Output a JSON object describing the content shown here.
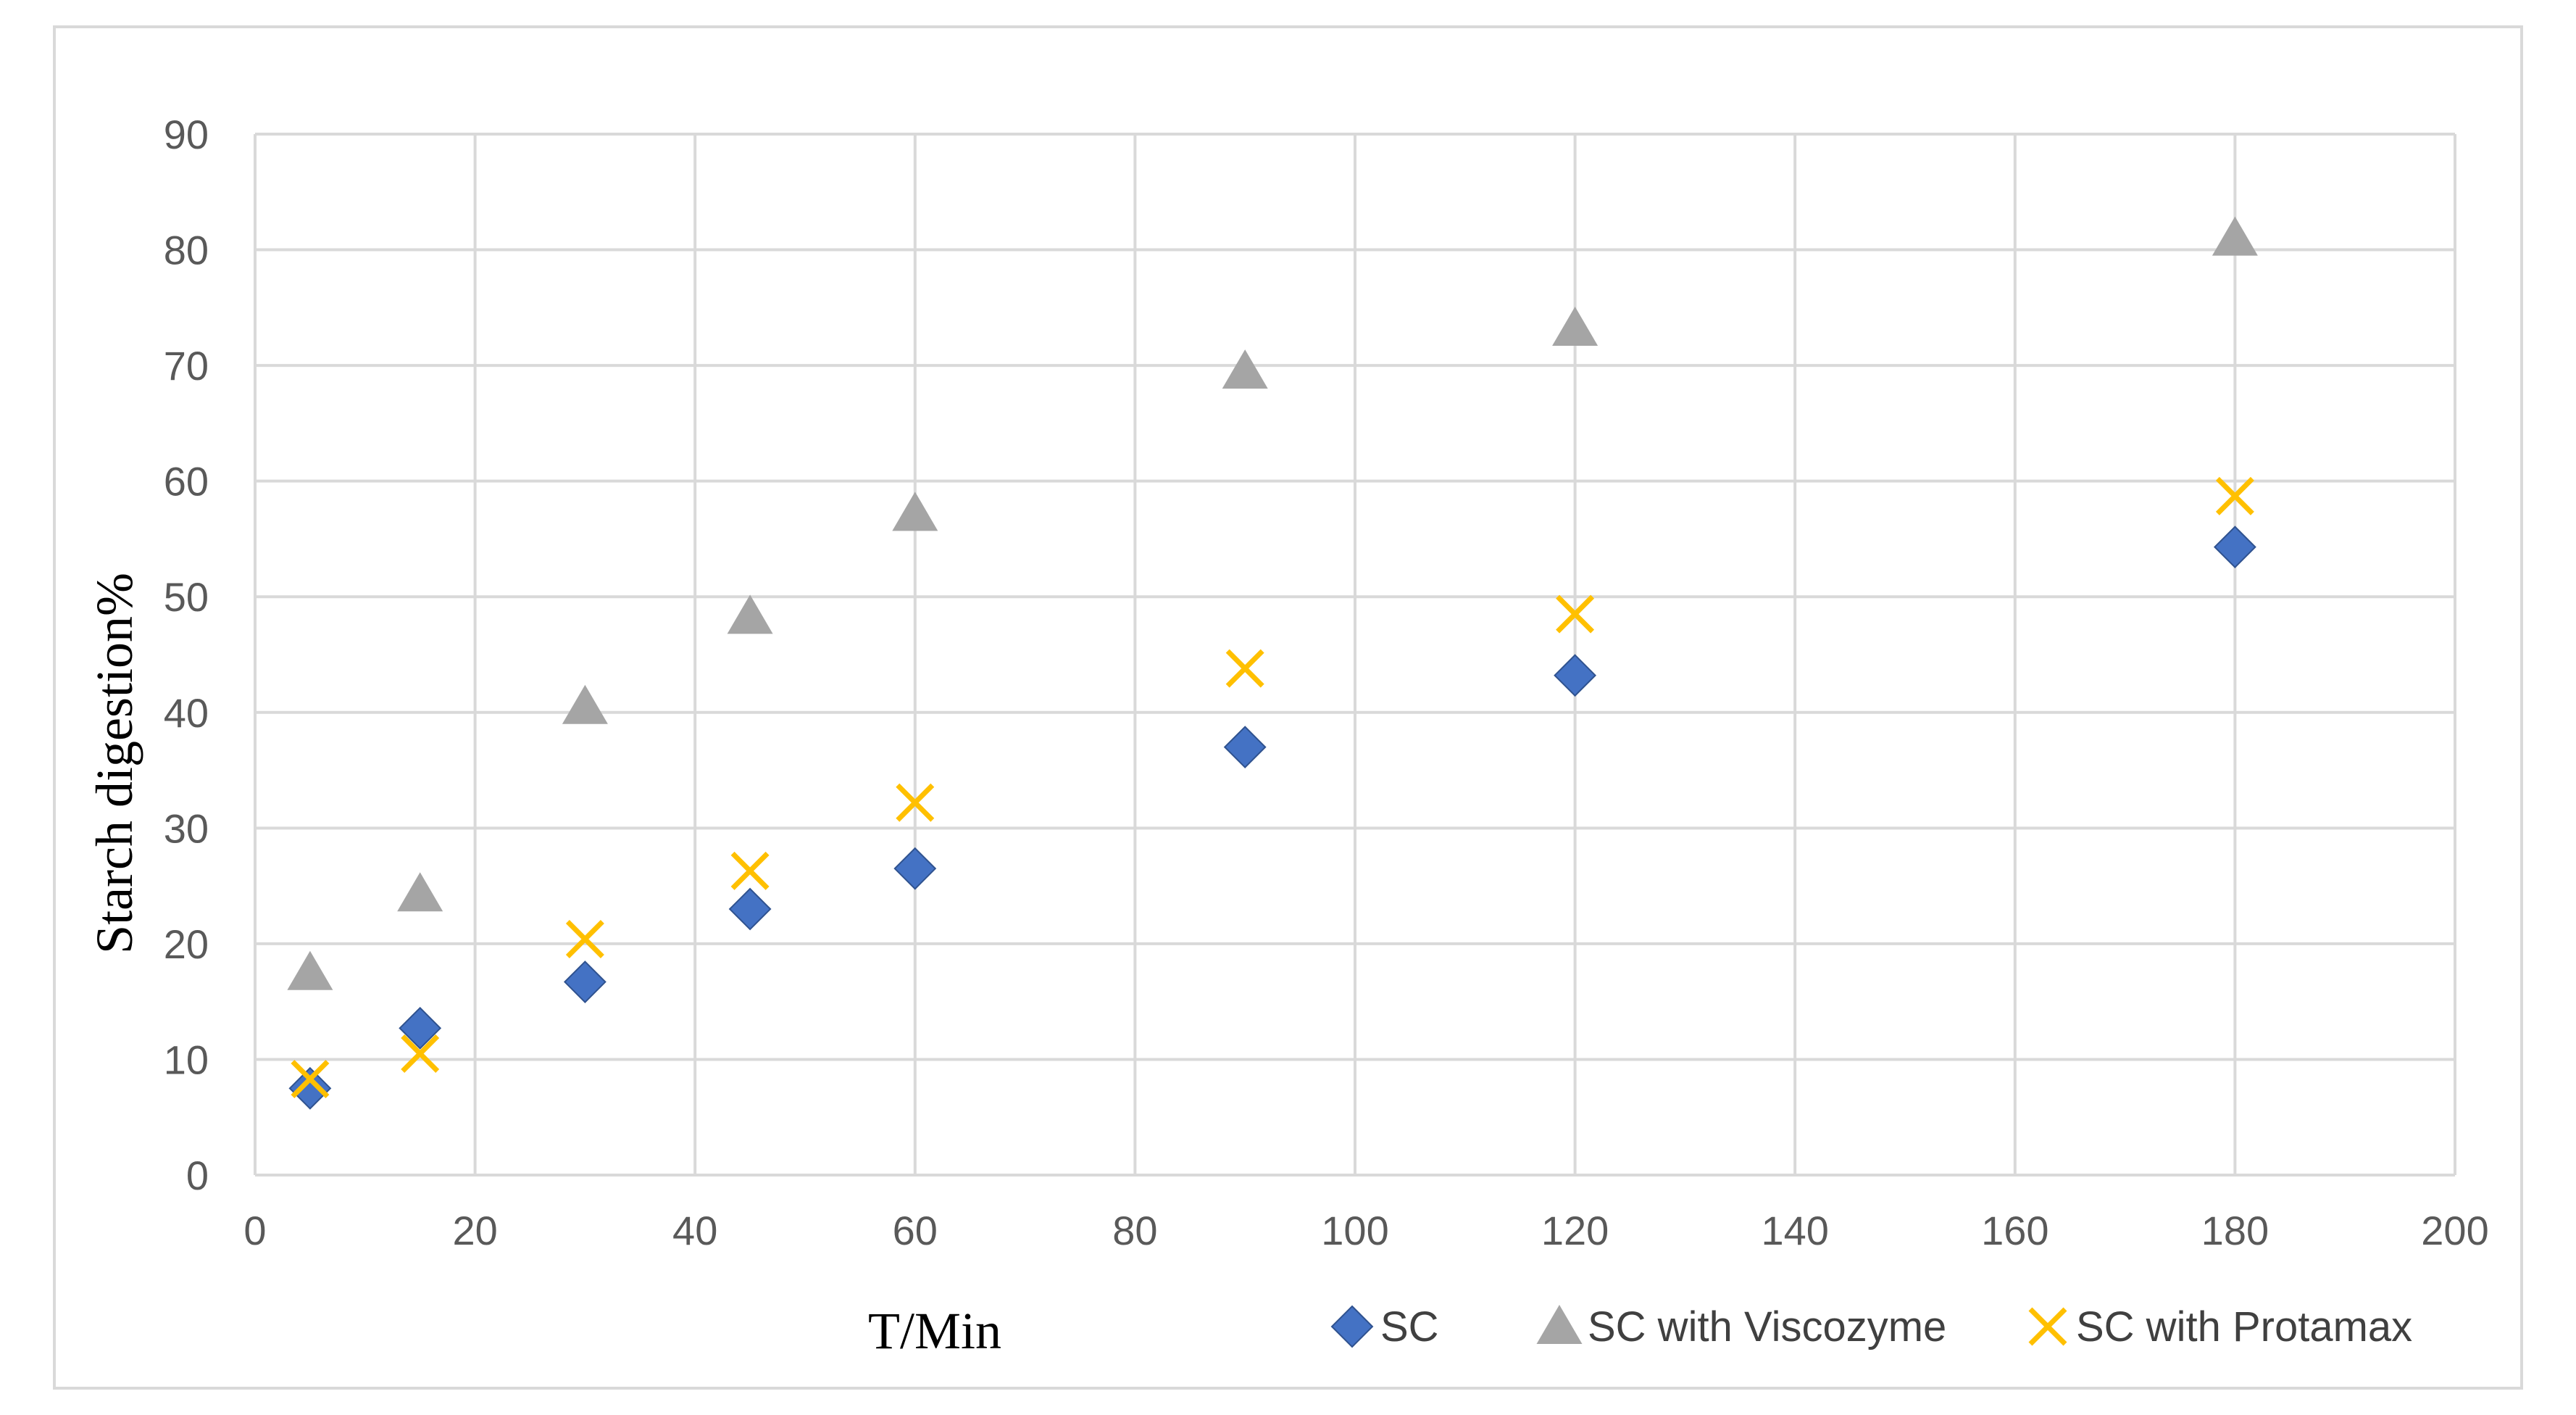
{
  "chart_data": {
    "type": "scatter",
    "title": "",
    "xlabel": "T/Min",
    "ylabel": "Starch digestion%",
    "xlim": [
      0,
      200
    ],
    "ylim": [
      0,
      90
    ],
    "x_ticks": [
      "0",
      "20",
      "40",
      "60",
      "80",
      "100",
      "120",
      "140",
      "160",
      "180",
      "200"
    ],
    "y_ticks": [
      "0",
      "10",
      "20",
      "30",
      "40",
      "50",
      "60",
      "70",
      "80",
      "90"
    ],
    "grid": true,
    "legend_position": "bottom-right",
    "series": [
      {
        "name": "SC",
        "marker": "diamond",
        "color": "#4472C4",
        "x": [
          5,
          15,
          30,
          45,
          60,
          90,
          120,
          180
        ],
        "y": [
          7.5,
          12.7,
          16.7,
          23,
          26.5,
          37,
          43.2,
          54.3
        ]
      },
      {
        "name": "SC with Viscozyme",
        "marker": "triangle",
        "color": "#A5A5A5",
        "x": [
          5,
          15,
          30,
          45,
          60,
          90,
          120,
          180
        ],
        "y": [
          17.5,
          24.3,
          40.5,
          48.3,
          57.2,
          69.5,
          73.2,
          81
        ]
      },
      {
        "name": "SC with Protamax",
        "marker": "x",
        "color": "#FFC000",
        "x": [
          5,
          15,
          30,
          45,
          60,
          90,
          120,
          180
        ],
        "y": [
          8.3,
          10.5,
          20.4,
          26.3,
          32.2,
          43.8,
          48.5,
          58.7
        ]
      }
    ]
  }
}
